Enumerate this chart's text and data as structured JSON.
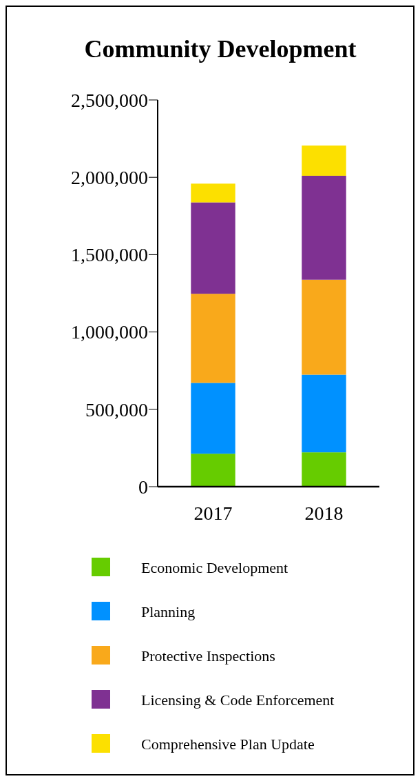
{
  "chart_data": {
    "type": "bar",
    "title": "Community Development",
    "categories": [
      "2017",
      "2018"
    ],
    "stacked": true,
    "series": [
      {
        "name": "Economic Development",
        "color": "#66cc00",
        "values": [
          213000,
          222000
        ]
      },
      {
        "name": "Planning",
        "color": "#0091ff",
        "values": [
          458000,
          502000
        ]
      },
      {
        "name": "Protective Inspections",
        "color": "#f9a91b",
        "values": [
          576000,
          614000
        ]
      },
      {
        "name": "Licensing & Code Enforcement",
        "color": "#7f3192",
        "values": [
          591000,
          672000
        ]
      },
      {
        "name": "Comprehensive Plan Update",
        "color": "#fce000",
        "values": [
          121000,
          195000
        ]
      }
    ],
    "ylim": [
      0,
      2500000
    ],
    "yticks": [
      {
        "value": 0,
        "label": "0"
      },
      {
        "value": 500000,
        "label": "500,000"
      },
      {
        "value": 1000000,
        "label": "1,000,000"
      },
      {
        "value": 1500000,
        "label": "1,500,000"
      },
      {
        "value": 2000000,
        "label": "2,000,000"
      },
      {
        "value": 2500000,
        "label": "2,500,000"
      }
    ],
    "grid": false,
    "legend": "bottom"
  }
}
